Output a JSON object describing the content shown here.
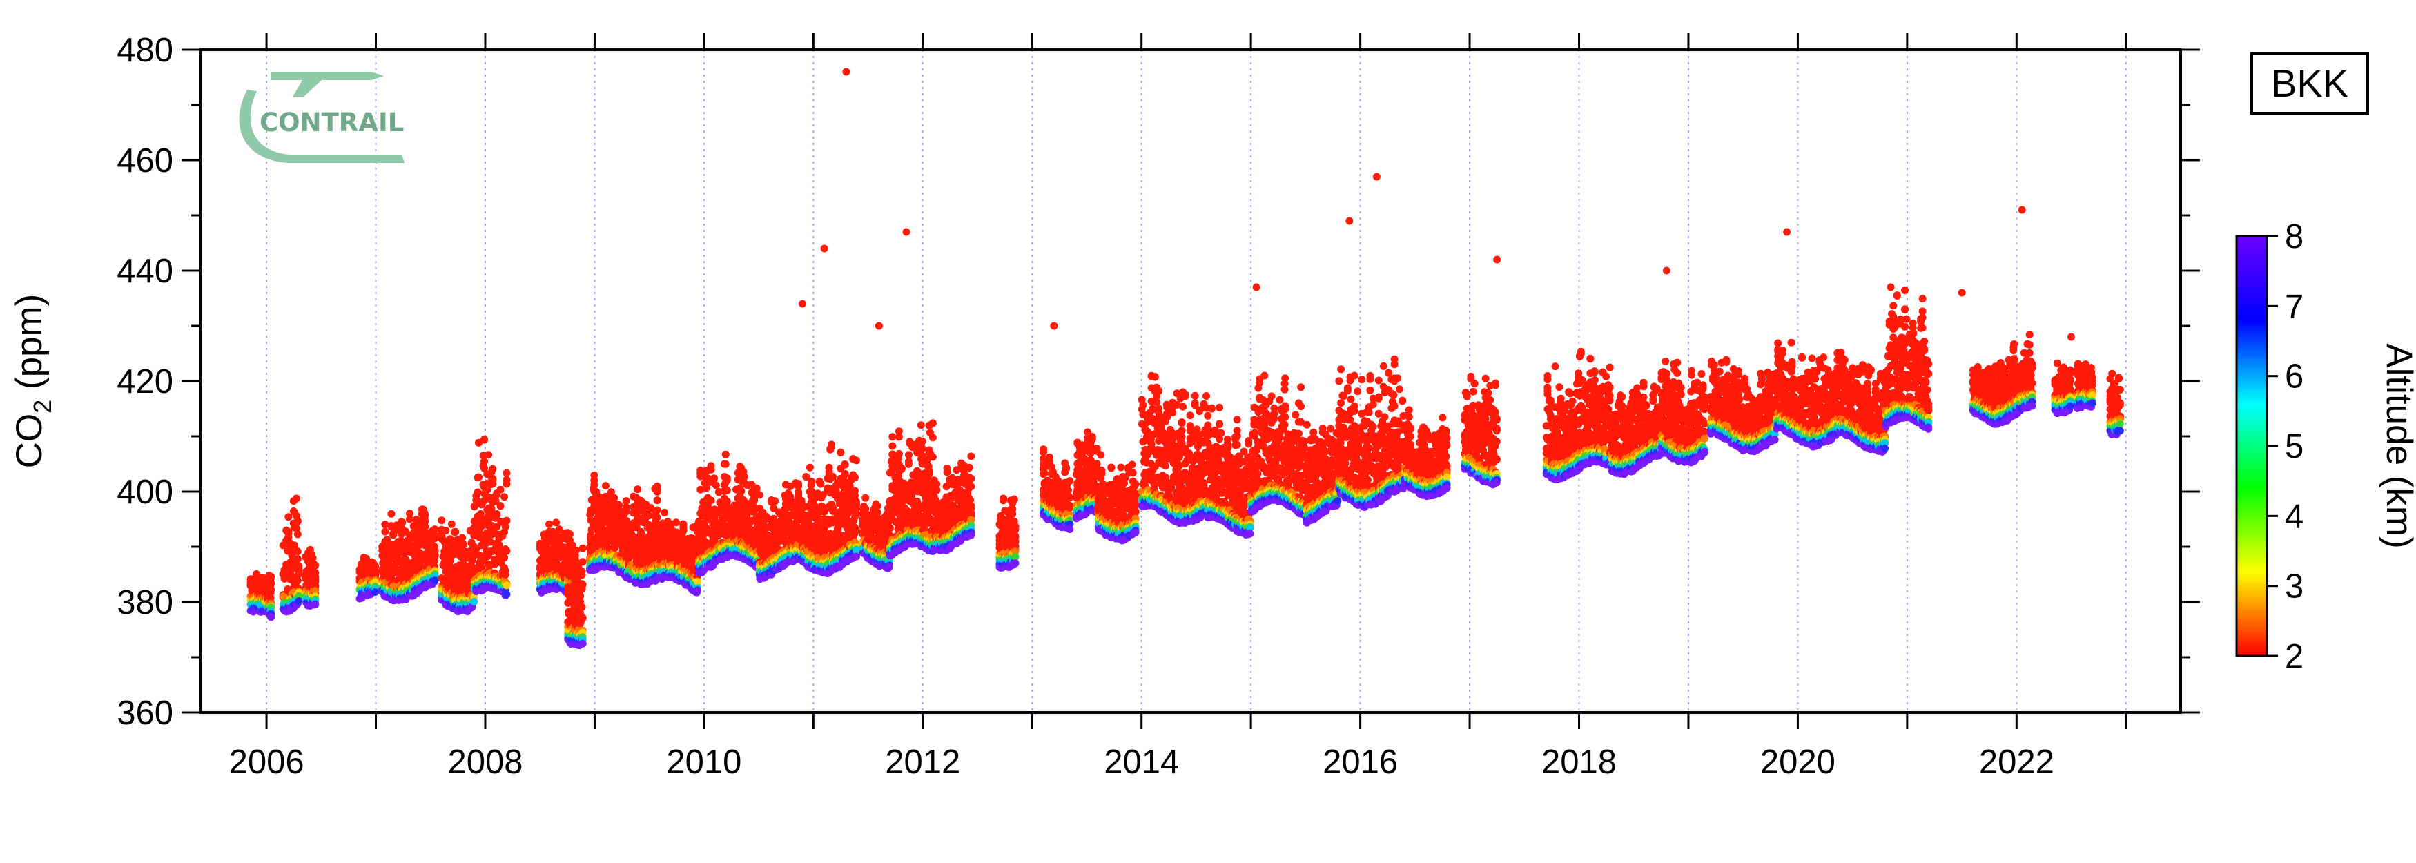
{
  "chart_data": {
    "type": "scatter",
    "title": "",
    "tag": "BKK",
    "logo_text": "CONTRAIL",
    "xlabel": "",
    "ylabel": "CO2 (ppm)",
    "ylabel_main": "CO",
    "ylabel_sub": "2",
    "ylabel_unit": " (ppm)",
    "xlim": [
      2005.4,
      2023.5
    ],
    "ylim": [
      360,
      480
    ],
    "x_ticks": [
      2006,
      2008,
      2010,
      2012,
      2014,
      2016,
      2018,
      2020,
      2022
    ],
    "y_ticks": [
      360,
      380,
      400,
      420,
      440,
      460,
      480
    ],
    "grid": "vertical dotted lines at each year",
    "colorbar": {
      "label": "Altitude (km)",
      "range": [
        2,
        8
      ],
      "ticks": [
        2,
        3,
        4,
        5,
        6,
        7,
        8
      ],
      "colormap": [
        "#ff0000",
        "#ffff00",
        "#00ff00",
        "#00ffff",
        "#0000ff",
        "#6a00ff"
      ]
    },
    "clusters": [
      {
        "x": [
          2005.85,
          2006.05
        ],
        "base": 377,
        "top": 382
      },
      {
        "x": [
          2006.15,
          2006.3
        ],
        "base": 380,
        "top": 398
      },
      {
        "x": [
          2006.35,
          2006.45
        ],
        "base": 378,
        "top": 386
      },
      {
        "x": [
          2006.85,
          2007.0
        ],
        "base": 380,
        "top": 385
      },
      {
        "x": [
          2007.05,
          2007.55
        ],
        "base": 382,
        "top": 397
      },
      {
        "x": [
          2007.6,
          2007.9
        ],
        "base": 380,
        "top": 393
      },
      {
        "x": [
          2007.9,
          2008.2
        ],
        "base": 381,
        "top": 406
      },
      {
        "x": [
          2008.5,
          2008.85
        ],
        "base": 381,
        "top": 390
      },
      {
        "x": [
          2008.75,
          2008.9
        ],
        "base": 374,
        "top": 389
      },
      {
        "x": [
          2008.95,
          2009.6
        ],
        "base": 385,
        "top": 400
      },
      {
        "x": [
          2009.6,
          2009.95
        ],
        "base": 383,
        "top": 393
      },
      {
        "x": [
          2009.95,
          2010.5
        ],
        "base": 387,
        "top": 403
      },
      {
        "x": [
          2010.5,
          2010.95
        ],
        "base": 386,
        "top": 399
      },
      {
        "x": [
          2010.95,
          2011.4
        ],
        "base": 387,
        "top": 407
      },
      {
        "x": [
          2011.45,
          2011.7
        ],
        "base": 388,
        "top": 397
      },
      {
        "x": [
          2011.7,
          2012.1
        ],
        "base": 389,
        "top": 410
      },
      {
        "x": [
          2012.1,
          2012.45
        ],
        "base": 391,
        "top": 404
      },
      {
        "x": [
          2012.7,
          2012.85
        ],
        "base": 388,
        "top": 398
      },
      {
        "x": [
          2013.1,
          2013.35
        ],
        "base": 395,
        "top": 405
      },
      {
        "x": [
          2013.4,
          2013.6
        ],
        "base": 395,
        "top": 408
      },
      {
        "x": [
          2013.6,
          2013.95
        ],
        "base": 393,
        "top": 404
      },
      {
        "x": [
          2014.0,
          2014.6
        ],
        "base": 396,
        "top": 419
      },
      {
        "x": [
          2014.6,
          2015.0
        ],
        "base": 394,
        "top": 412
      },
      {
        "x": [
          2015.0,
          2015.5
        ],
        "base": 397,
        "top": 419
      },
      {
        "x": [
          2015.5,
          2015.8
        ],
        "base": 396,
        "top": 411
      },
      {
        "x": [
          2015.8,
          2016.4
        ],
        "base": 399,
        "top": 421
      },
      {
        "x": [
          2016.4,
          2016.8
        ],
        "base": 401,
        "top": 412
      },
      {
        "x": [
          2016.95,
          2017.25
        ],
        "base": 403,
        "top": 421
      },
      {
        "x": [
          2017.7,
          2018.3
        ],
        "base": 404,
        "top": 422
      },
      {
        "x": [
          2018.3,
          2018.75
        ],
        "base": 405,
        "top": 418
      },
      {
        "x": [
          2018.75,
          2019.15
        ],
        "base": 407,
        "top": 422
      },
      {
        "x": [
          2019.2,
          2019.8
        ],
        "base": 409,
        "top": 421
      },
      {
        "x": [
          2019.8,
          2020.35
        ],
        "base": 410,
        "top": 424
      },
      {
        "x": [
          2020.35,
          2020.8
        ],
        "base": 409,
        "top": 422
      },
      {
        "x": [
          2020.8,
          2021.2
        ],
        "base": 412,
        "top": 433
      },
      {
        "x": [
          2021.6,
          2021.8
        ],
        "base": 413,
        "top": 420
      },
      {
        "x": [
          2021.8,
          2022.15
        ],
        "base": 414,
        "top": 425
      },
      {
        "x": [
          2022.35,
          2022.5
        ],
        "base": 416,
        "top": 422
      },
      {
        "x": [
          2022.55,
          2022.7
        ],
        "base": 414,
        "top": 420
      },
      {
        "x": [
          2022.85,
          2022.95
        ],
        "base": 412,
        "top": 421
      }
    ],
    "outliers": [
      {
        "x": 2011.3,
        "y": 476
      },
      {
        "x": 2011.1,
        "y": 444
      },
      {
        "x": 2010.9,
        "y": 434
      },
      {
        "x": 2011.85,
        "y": 447
      },
      {
        "x": 2011.6,
        "y": 430
      },
      {
        "x": 2013.2,
        "y": 430
      },
      {
        "x": 2015.05,
        "y": 437
      },
      {
        "x": 2015.9,
        "y": 449
      },
      {
        "x": 2016.15,
        "y": 457
      },
      {
        "x": 2017.25,
        "y": 442
      },
      {
        "x": 2018.8,
        "y": 440
      },
      {
        "x": 2019.9,
        "y": 447
      },
      {
        "x": 2020.85,
        "y": 437
      },
      {
        "x": 2021.5,
        "y": 436
      },
      {
        "x": 2022.05,
        "y": 451
      },
      {
        "x": 2022.5,
        "y": 428
      }
    ]
  }
}
